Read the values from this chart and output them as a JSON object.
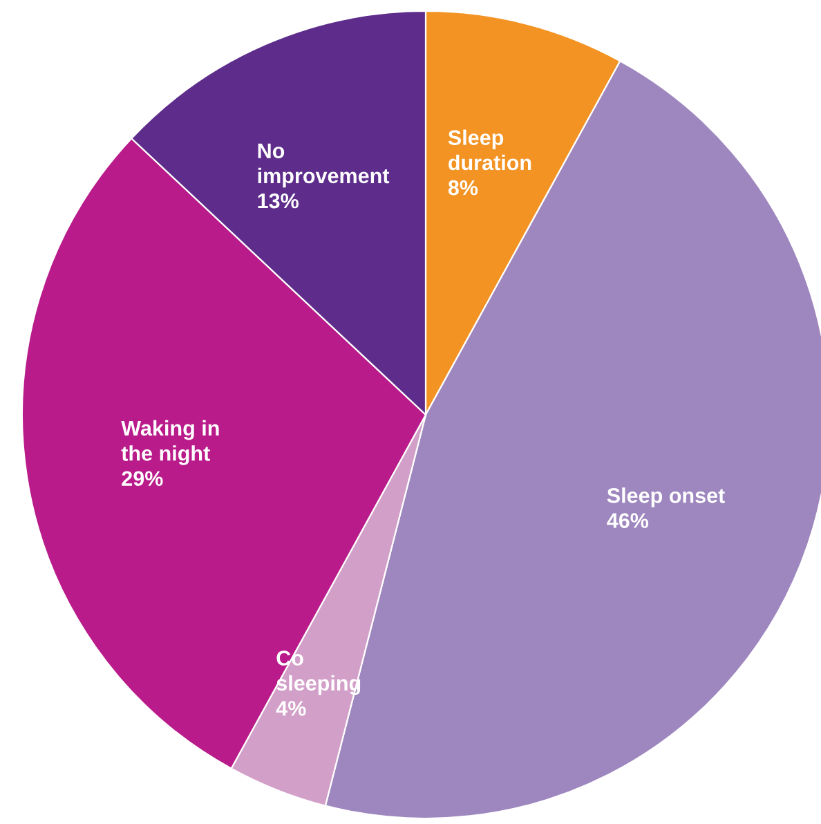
{
  "chart_data": {
    "type": "pie",
    "categories": [
      "Sleep\nduration",
      "Sleep onset",
      "Co\nsleeping",
      "Waking in\nthe night",
      "No\nimprovement"
    ],
    "values": [
      8,
      46,
      4,
      29,
      13
    ],
    "value_labels": [
      "8%",
      "46%",
      "4%",
      "29%",
      "13%"
    ],
    "colors": [
      "#f39323",
      "#9e87be",
      "#d29fc9",
      "#b91b8a",
      "#5e2d8c"
    ],
    "legend": false
  }
}
